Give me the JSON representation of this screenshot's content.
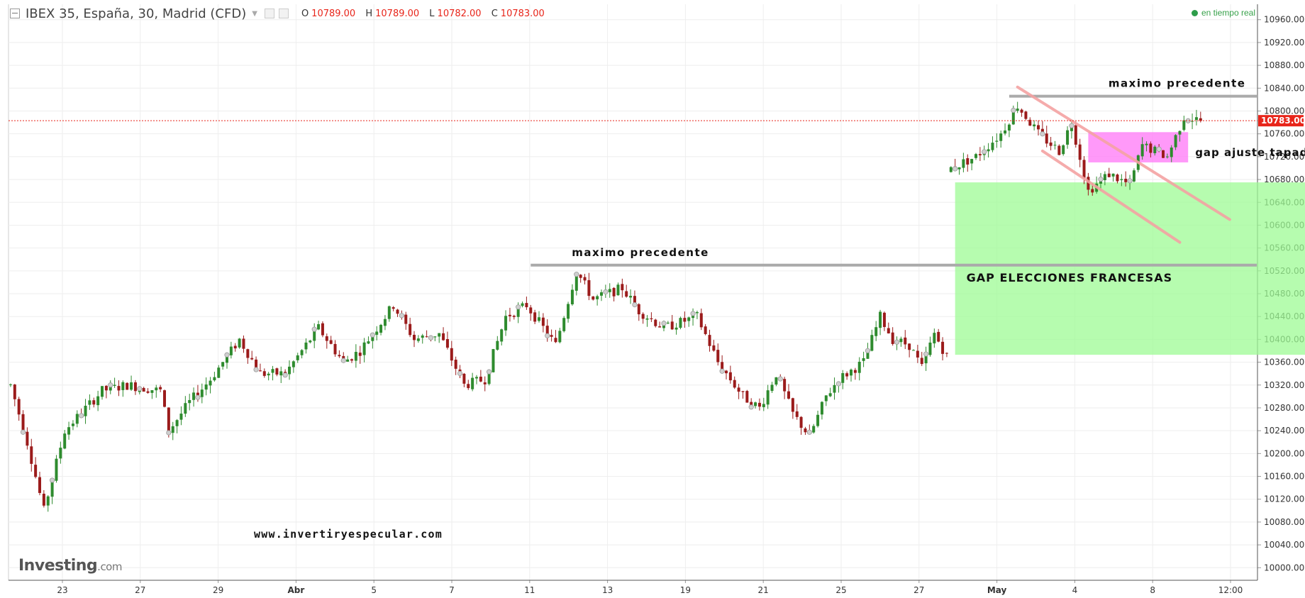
{
  "header": {
    "symbol": "IBEX 35, España, 30, Madrid (CFD)",
    "ohlc": [
      {
        "k": "O",
        "v": "10789.00"
      },
      {
        "k": "H",
        "v": "10789.00"
      },
      {
        "k": "L",
        "v": "10782.00"
      },
      {
        "k": "C",
        "v": "10783.00"
      }
    ]
  },
  "status": {
    "label": "en tiempo real"
  },
  "logo": {
    "brand": "Investing",
    "suffix": ".com"
  },
  "colors": {
    "bull": "#2e8b2e",
    "bear": "#9b1b1b",
    "gap_zone": "#9dfb94",
    "gap_adjust": "#ff80f8",
    "resistance": "#aaaaaa",
    "channel": "#f4a3a3",
    "last_price": "#e8251a"
  },
  "chart_data": {
    "type": "candlestick",
    "title": "",
    "ylabel": "",
    "ylim": [
      9978,
      10987
    ],
    "y_ticks": [
      10000,
      10040,
      10080,
      10120,
      10160,
      10200,
      10240,
      10280,
      10320,
      10360,
      10400,
      10440,
      10480,
      10520,
      10560,
      10600,
      10640,
      10680,
      10720,
      10760,
      10800,
      10840,
      10880,
      10920,
      10960
    ],
    "x_tick_labels": [
      "23",
      "27",
      "29",
      "Abr",
      "5",
      "7",
      "11",
      "13",
      "19",
      "21",
      "25",
      "27",
      "May",
      "4",
      "8",
      "12:00"
    ],
    "last_price": 10783,
    "last_price_label": "10783.00",
    "price_path": [
      [
        0,
        10320
      ],
      [
        4,
        10220
      ],
      [
        8,
        10100
      ],
      [
        13,
        10240
      ],
      [
        22,
        10310
      ],
      [
        28,
        10320
      ],
      [
        36,
        10310
      ],
      [
        38,
        10240
      ],
      [
        43,
        10290
      ],
      [
        48,
        10330
      ],
      [
        55,
        10400
      ],
      [
        60,
        10340
      ],
      [
        66,
        10340
      ],
      [
        74,
        10420
      ],
      [
        80,
        10360
      ],
      [
        84,
        10380
      ],
      [
        92,
        10460
      ],
      [
        97,
        10400
      ],
      [
        103,
        10410
      ],
      [
        109,
        10320
      ],
      [
        114,
        10330
      ],
      [
        119,
        10440
      ],
      [
        124,
        10460
      ],
      [
        128,
        10420
      ],
      [
        131,
        10390
      ],
      [
        136,
        10520
      ],
      [
        140,
        10470
      ],
      [
        147,
        10490
      ],
      [
        151,
        10450
      ],
      [
        157,
        10420
      ],
      [
        165,
        10440
      ],
      [
        170,
        10360
      ],
      [
        176,
        10300
      ],
      [
        180,
        10280
      ],
      [
        184,
        10340
      ],
      [
        188,
        10270
      ],
      [
        192,
        10230
      ],
      [
        196,
        10300
      ],
      [
        199,
        10330
      ],
      [
        205,
        10360
      ],
      [
        209,
        10440
      ],
      [
        212,
        10400
      ],
      [
        216,
        10390
      ],
      [
        219,
        10350
      ],
      [
        222,
        10410
      ],
      [
        225,
        10370
      ],
      [
        226,
        10700
      ],
      [
        232,
        10720
      ],
      [
        238,
        10760
      ],
      [
        242,
        10810
      ],
      [
        247,
        10760
      ],
      [
        252,
        10730
      ],
      [
        255,
        10780
      ],
      [
        259,
        10660
      ],
      [
        264,
        10690
      ],
      [
        269,
        10670
      ],
      [
        272,
        10740
      ],
      [
        278,
        10720
      ],
      [
        282,
        10790
      ],
      [
        286,
        10783
      ]
    ],
    "annotations": [
      {
        "type": "hline",
        "label": "maximo precedente",
        "y": 10530,
        "x_from": 125,
        "x_to": 355
      },
      {
        "type": "hline",
        "label": "maximo precedente",
        "y": 10826,
        "x_from": 240,
        "x_to": 355
      },
      {
        "type": "zone",
        "label": "GAP ELECCIONES FRANCESAS",
        "y_from": 10373,
        "y_to": 10675,
        "x_from": 227,
        "x_to": 312
      },
      {
        "type": "zone",
        "label": "gap ajuste tapado",
        "y_from": 10710,
        "y_to": 10763,
        "x_from": 259,
        "x_to": 283
      },
      {
        "type": "trendline",
        "points": [
          [
            242,
            10842
          ],
          [
            293,
            10610
          ]
        ]
      },
      {
        "type": "trendline",
        "points": [
          [
            248,
            10730
          ],
          [
            281,
            10570
          ]
        ]
      }
    ],
    "watermark_text": "www.invertiryespecular.com"
  }
}
